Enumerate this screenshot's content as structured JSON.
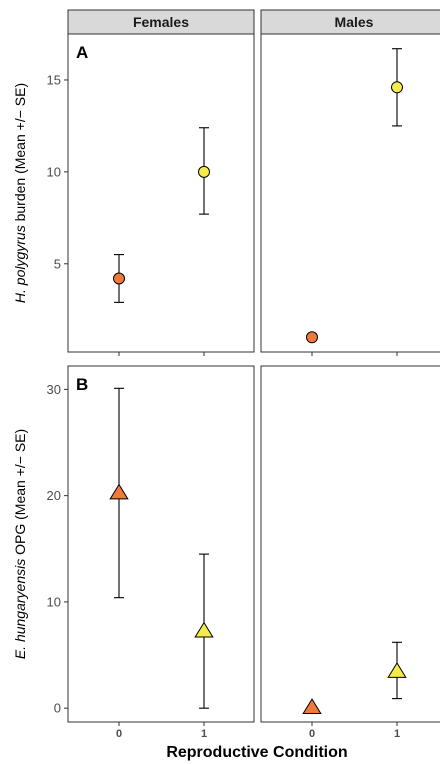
{
  "chart_data": [
    {
      "type": "scatter",
      "panel_letter": "A",
      "ylabel_italic": "H. polygyrus",
      "ylabel_rest": " burden (Mean +/− SE)",
      "yticks": [
        5,
        10,
        15
      ],
      "ylim": [
        0.2,
        17.5
      ],
      "marker": "circle",
      "facets": [
        {
          "name": "Females",
          "points": [
            {
              "x": 0,
              "y": 4.2,
              "lower": 2.9,
              "upper": 5.5,
              "color": "#f07a3c"
            },
            {
              "x": 1,
              "y": 10.0,
              "lower": 7.7,
              "upper": 12.4,
              "color": "#f5ec4a"
            }
          ]
        },
        {
          "name": "Males",
          "points": [
            {
              "x": 0,
              "y": 1.0,
              "lower": 1.0,
              "upper": 1.0,
              "color": "#f07a3c"
            },
            {
              "x": 1,
              "y": 14.6,
              "lower": 12.5,
              "upper": 16.7,
              "color": "#f5ec4a"
            }
          ]
        }
      ]
    },
    {
      "type": "scatter",
      "panel_letter": "B",
      "ylabel_italic": "E. hungaryensis",
      "ylabel_rest": " OPG (Mean +/− SE)",
      "yticks": [
        0,
        10,
        20,
        30
      ],
      "ylim": [
        -1.3,
        32.2
      ],
      "marker": "triangle",
      "facets": [
        {
          "name": "Females",
          "points": [
            {
              "x": 0,
              "y": 20.3,
              "lower": 10.4,
              "upper": 30.1,
              "color": "#f07a3c"
            },
            {
              "x": 1,
              "y": 7.3,
              "lower": 0.0,
              "upper": 14.5,
              "color": "#f5ec4a"
            }
          ]
        },
        {
          "name": "Males",
          "points": [
            {
              "x": 0,
              "y": 0.1,
              "lower": 0.1,
              "upper": 0.1,
              "color": "#f07a3c"
            },
            {
              "x": 1,
              "y": 3.5,
              "lower": 0.9,
              "upper": 6.2,
              "color": "#f5ec4a"
            }
          ]
        }
      ]
    }
  ],
  "facet_labels": [
    "Females",
    "Males"
  ],
  "x_categories": [
    "0",
    "1"
  ],
  "xlabel": "Reproductive Condition"
}
